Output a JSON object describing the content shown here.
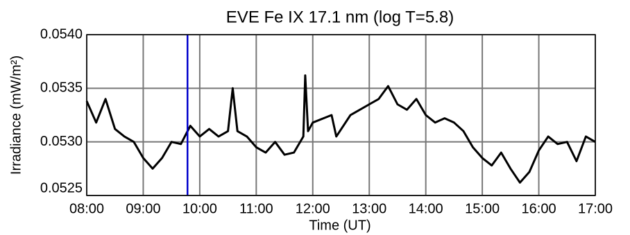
{
  "chart_data": {
    "type": "line",
    "title": "EVE Fe IX 17.1 nm (log T=5.8)",
    "x_label": "Time (UT)",
    "y_label": "Irradiance (mW/m²)",
    "x": [
      480,
      490,
      500,
      510,
      520,
      530,
      540,
      550,
      560,
      570,
      580,
      590,
      600,
      610,
      620,
      630,
      635,
      640,
      650,
      660,
      670,
      680,
      690,
      700,
      710,
      712,
      715,
      720,
      740,
      745,
      760,
      770,
      780,
      790,
      800,
      810,
      820,
      830,
      840,
      850,
      860,
      870,
      880,
      890,
      900,
      910,
      920,
      930,
      940,
      950,
      960,
      970,
      980,
      990,
      1000,
      1010,
      1020
    ],
    "series": [
      {
        "name": "Fe IX 17.1 nm",
        "color": "#000000",
        "values": [
          0.05338,
          0.05318,
          0.0534,
          0.05312,
          0.05305,
          0.053,
          0.05285,
          0.05275,
          0.05285,
          0.053,
          0.05298,
          0.05315,
          0.05305,
          0.05312,
          0.05305,
          0.0531,
          0.0535,
          0.0531,
          0.05305,
          0.05295,
          0.0529,
          0.053,
          0.05288,
          0.0529,
          0.05305,
          0.05362,
          0.0531,
          0.05318,
          0.05325,
          0.05305,
          0.05325,
          0.0533,
          0.05335,
          0.0534,
          0.05352,
          0.05335,
          0.0533,
          0.0534,
          0.05325,
          0.05318,
          0.05322,
          0.05318,
          0.0531,
          0.05295,
          0.05285,
          0.05278,
          0.0529,
          0.05275,
          0.05262,
          0.05272,
          0.05292,
          0.05305,
          0.05298,
          0.053,
          0.05282,
          0.05305,
          0.053
        ]
      }
    ],
    "xlim": [
      480,
      1020
    ],
    "xticks": [
      {
        "value": 480,
        "label": "08:00"
      },
      {
        "value": 540,
        "label": "09:00"
      },
      {
        "value": 600,
        "label": "10:00"
      },
      {
        "value": 660,
        "label": "11:00"
      },
      {
        "value": 720,
        "label": "12:00"
      },
      {
        "value": 780,
        "label": "13:00"
      },
      {
        "value": 840,
        "label": "14:00"
      },
      {
        "value": 900,
        "label": "15:00"
      },
      {
        "value": 960,
        "label": "16:00"
      },
      {
        "value": 1020,
        "label": "17:00"
      }
    ],
    "ylim": [
      0.0525,
      0.054
    ],
    "yticks": [
      0.0525,
      {
        "value": 0.053,
        "label": "0.0530"
      },
      0.0535,
      {
        "value": 0.054,
        "label": "0.0540"
      }
    ],
    "grid": true,
    "marker_x": 587,
    "marker_color": "#0000cc"
  }
}
